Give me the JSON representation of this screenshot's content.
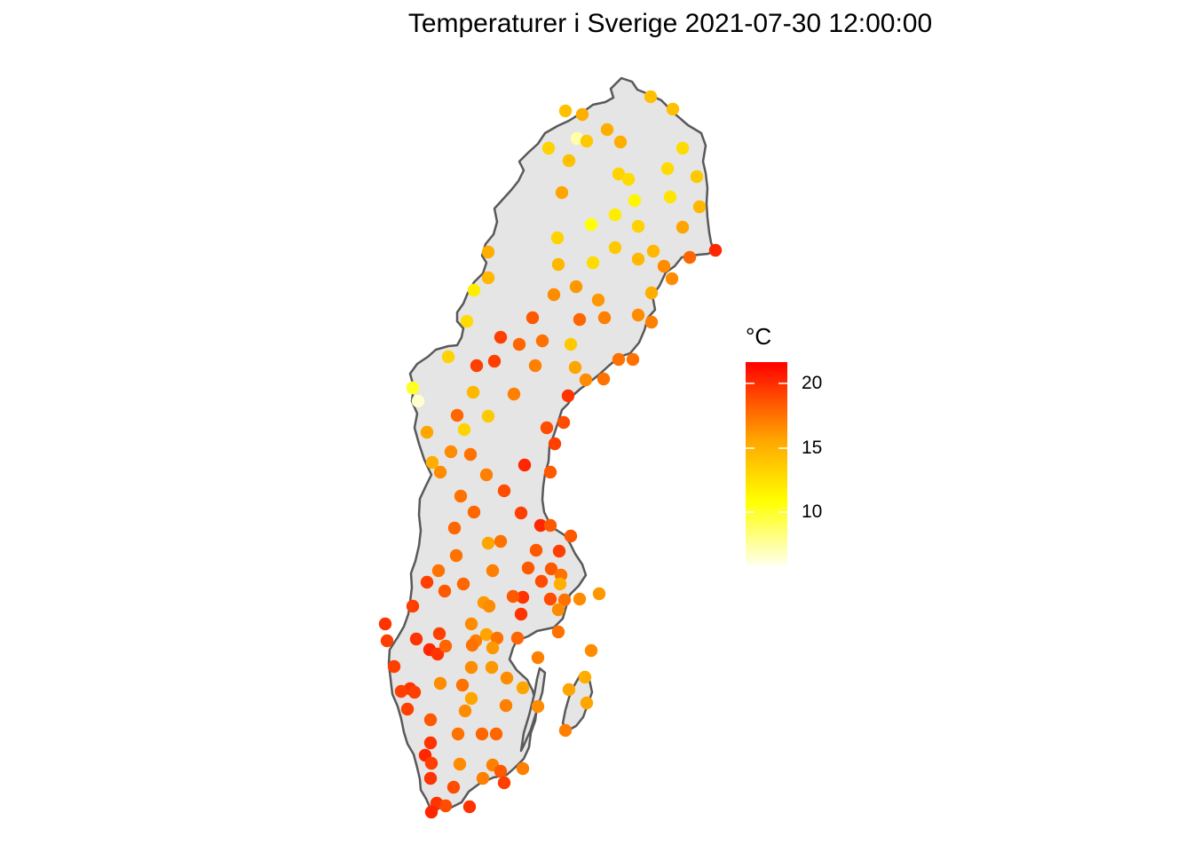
{
  "title": "Temperaturer i Sverige 2021-07-30 12:00:00",
  "legend": {
    "title": "°C",
    "ticks": [
      "20",
      "15",
      "10"
    ],
    "colors": [
      "#FFFFF0",
      "#FFFF00",
      "#FFA500",
      "#FF0000"
    ]
  },
  "map": {
    "region": "Sverige",
    "fill": "#E5E5E5",
    "outline": "#595959"
  }
}
